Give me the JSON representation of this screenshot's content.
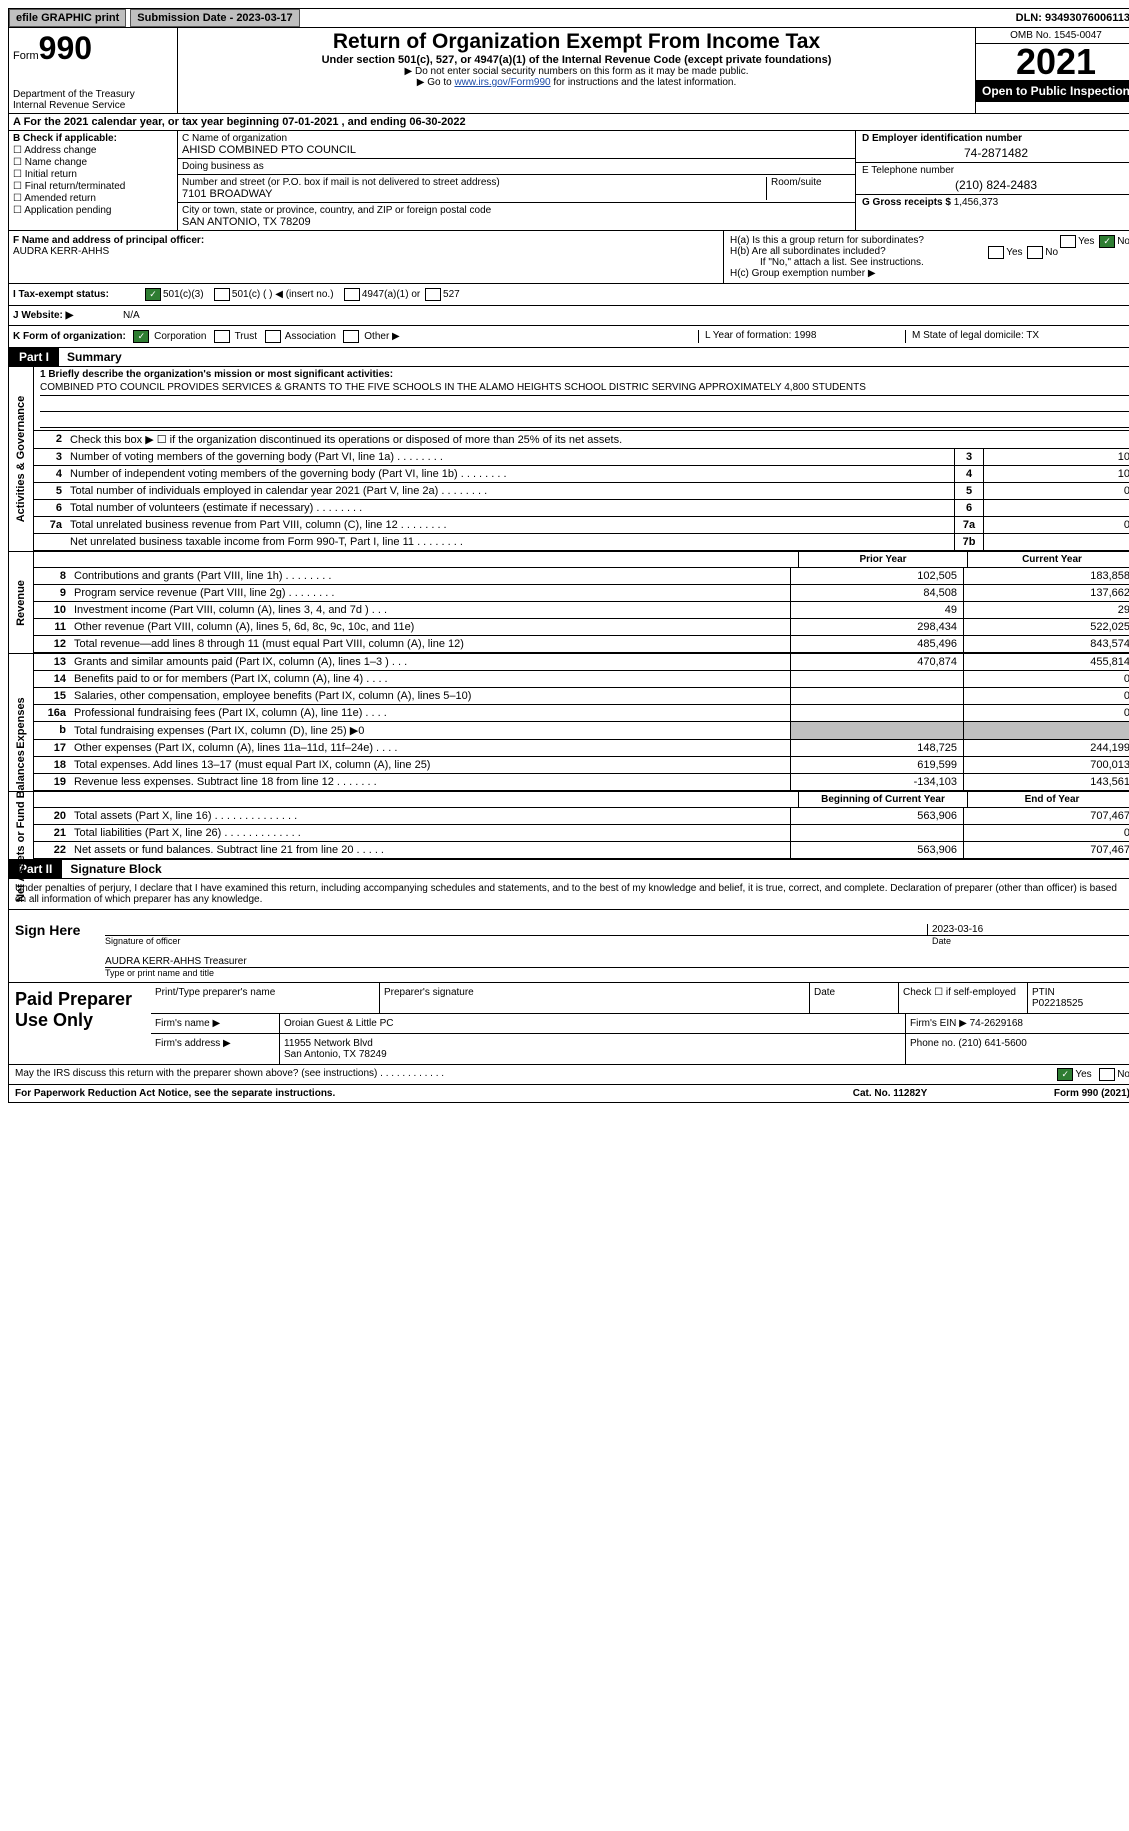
{
  "top": {
    "efile": "efile GRAPHIC print",
    "submission_label": "Submission Date - 2023-03-17",
    "dln": "DLN: 93493076006113"
  },
  "header": {
    "form_word": "Form",
    "form_no": "990",
    "dept": "Department of the Treasury",
    "irs": "Internal Revenue Service",
    "title": "Return of Organization Exempt From Income Tax",
    "sub": "Under section 501(c), 527, or 4947(a)(1) of the Internal Revenue Code (except private foundations)",
    "note1": "▶ Do not enter social security numbers on this form as it may be made public.",
    "note2_pre": "▶ Go to ",
    "note2_link": "www.irs.gov/Form990",
    "note2_post": " for instructions and the latest information.",
    "omb": "OMB No. 1545-0047",
    "year": "2021",
    "open": "Open to Public Inspection"
  },
  "A": "A  For the 2021 calendar year, or tax year beginning 07-01-2021    , and ending 06-30-2022",
  "B": {
    "head": "B Check if applicable:",
    "opts": [
      "Address change",
      "Name change",
      "Initial return",
      "Final return/terminated",
      "Amended return",
      "Application pending"
    ]
  },
  "C": {
    "name_label": "C Name of organization",
    "name": "AHISD COMBINED PTO COUNCIL",
    "dba_label": "Doing business as",
    "dba": "",
    "street_label": "Number and street (or P.O. box if mail is not delivered to street address)",
    "room_label": "Room/suite",
    "street": "7101 BROADWAY",
    "city_label": "City or town, state or province, country, and ZIP or foreign postal code",
    "city": "SAN ANTONIO, TX  78209"
  },
  "D": {
    "label": "D Employer identification number",
    "val": "74-2871482"
  },
  "E": {
    "label": "E Telephone number",
    "val": "(210) 824-2483"
  },
  "G": {
    "label": "G Gross receipts $",
    "val": "1,456,373"
  },
  "F": {
    "label": "F  Name and address of principal officer:",
    "val": "AUDRA KERR-AHHS"
  },
  "H": {
    "a": "H(a)  Is this a group return for subordinates?",
    "b": "H(b)  Are all subordinates included?",
    "note": "If \"No,\" attach a list. See instructions.",
    "c": "H(c)  Group exemption number ▶",
    "yes": "Yes",
    "no": "No"
  },
  "I": {
    "label": "I  Tax-exempt status:",
    "o1": "501(c)(3)",
    "o2": "501(c) (  ) ◀ (insert no.)",
    "o3": "4947(a)(1) or",
    "o4": "527"
  },
  "J": {
    "label": "J  Website: ▶",
    "val": "N/A"
  },
  "K": {
    "label": "K Form of organization:",
    "o1": "Corporation",
    "o2": "Trust",
    "o3": "Association",
    "o4": "Other ▶",
    "L": "L Year of formation: 1998",
    "M": "M State of legal domicile: TX"
  },
  "part1": {
    "tag": "Part I",
    "title": "Summary"
  },
  "s1": {
    "l1_label": "1  Briefly describe the organization's mission or most significant activities:",
    "mission": "COMBINED PTO COUNCIL PROVIDES SERVICES & GRANTS TO THE FIVE SCHOOLS IN THE ALAMO HEIGHTS SCHOOL DISTRIC SERVING APPROXIMATELY 4,800 STUDENTS",
    "l2": "Check this box ▶ ☐ if the organization discontinued its operations or disposed of more than 25% of its net assets.",
    "rows": [
      {
        "n": "3",
        "d": "Number of voting members of the governing body (Part VI, line 1a)",
        "box": "3",
        "v": "10"
      },
      {
        "n": "4",
        "d": "Number of independent voting members of the governing body (Part VI, line 1b)",
        "box": "4",
        "v": "10"
      },
      {
        "n": "5",
        "d": "Total number of individuals employed in calendar year 2021 (Part V, line 2a)",
        "box": "5",
        "v": "0"
      },
      {
        "n": "6",
        "d": "Total number of volunteers (estimate if necessary)",
        "box": "6",
        "v": ""
      },
      {
        "n": "7a",
        "d": "Total unrelated business revenue from Part VIII, column (C), line 12",
        "box": "7a",
        "v": "0"
      },
      {
        "n": "",
        "d": "Net unrelated business taxable income from Form 990-T, Part I, line 11",
        "box": "7b",
        "v": ""
      }
    ],
    "vlabel": "Activities & Governance"
  },
  "rev": {
    "vlabel": "Revenue",
    "hdr_prior": "Prior Year",
    "hdr_cur": "Current Year",
    "rows": [
      {
        "n": "8",
        "d": "Contributions and grants (Part VIII, line 1h)   .   .   .   .   .   .   .   .",
        "p": "102,505",
        "c": "183,858"
      },
      {
        "n": "9",
        "d": "Program service revenue (Part VIII, line 2g)   .   .   .   .   .   .   .   .",
        "p": "84,508",
        "c": "137,662"
      },
      {
        "n": "10",
        "d": "Investment income (Part VIII, column (A), lines 3, 4, and 7d )   .   .   .",
        "p": "49",
        "c": "29"
      },
      {
        "n": "11",
        "d": "Other revenue (Part VIII, column (A), lines 5, 6d, 8c, 9c, 10c, and 11e)",
        "p": "298,434",
        "c": "522,025"
      },
      {
        "n": "12",
        "d": "Total revenue—add lines 8 through 11 (must equal Part VIII, column (A), line 12)",
        "p": "485,496",
        "c": "843,574"
      }
    ]
  },
  "exp": {
    "vlabel": "Expenses",
    "rows": [
      {
        "n": "13",
        "d": "Grants and similar amounts paid (Part IX, column (A), lines 1–3 )   .   .   .",
        "p": "470,874",
        "c": "455,814"
      },
      {
        "n": "14",
        "d": "Benefits paid to or for members (Part IX, column (A), line 4)   .   .   .   .",
        "p": "",
        "c": "0"
      },
      {
        "n": "15",
        "d": "Salaries, other compensation, employee benefits (Part IX, column (A), lines 5–10)",
        "p": "",
        "c": "0"
      },
      {
        "n": "16a",
        "d": "Professional fundraising fees (Part IX, column (A), line 11e)   .   .   .   .",
        "p": "",
        "c": "0"
      },
      {
        "n": "b",
        "d": "Total fundraising expenses (Part IX, column (D), line 25) ▶0",
        "p": "grey",
        "c": "grey"
      },
      {
        "n": "17",
        "d": "Other expenses (Part IX, column (A), lines 11a–11d, 11f–24e)   .   .   .   .",
        "p": "148,725",
        "c": "244,199"
      },
      {
        "n": "18",
        "d": "Total expenses. Add lines 13–17 (must equal Part IX, column (A), line 25)",
        "p": "619,599",
        "c": "700,013"
      },
      {
        "n": "19",
        "d": "Revenue less expenses. Subtract line 18 from line 12   .   .   .   .   .   .   .",
        "p": "-134,103",
        "c": "143,561"
      }
    ]
  },
  "net": {
    "vlabel": "Net Assets or Fund Balances",
    "hdr_b": "Beginning of Current Year",
    "hdr_e": "End of Year",
    "rows": [
      {
        "n": "20",
        "d": "Total assets (Part X, line 16)   .   .   .   .   .   .   .   .   .   .   .   .   .   .",
        "p": "563,906",
        "c": "707,467"
      },
      {
        "n": "21",
        "d": "Total liabilities (Part X, line 26)   .   .   .   .   .   .   .   .   .   .   .   .   .",
        "p": "",
        "c": "0"
      },
      {
        "n": "22",
        "d": "Net assets or fund balances. Subtract line 21 from line 20   .   .   .   .   .",
        "p": "563,906",
        "c": "707,467"
      }
    ]
  },
  "part2": {
    "tag": "Part II",
    "title": "Signature Block"
  },
  "sig": {
    "decl": "Under penalties of perjury, I declare that I have examined this return, including accompanying schedules and statements, and to the best of my knowledge and belief, it is true, correct, and complete. Declaration of preparer (other than officer) is based on all information of which preparer has any knowledge.",
    "sign_here": "Sign Here",
    "sig_of_officer": "Signature of officer",
    "date": "2023-03-16",
    "date_lbl": "Date",
    "name": "AUDRA KERR-AHHS  Treasurer",
    "name_lbl": "Type or print name and title"
  },
  "paid": {
    "title": "Paid Preparer Use Only",
    "h_name": "Print/Type preparer's name",
    "h_sig": "Preparer's signature",
    "h_date": "Date",
    "h_chk": "Check ☐ if self-employed",
    "h_ptin": "PTIN",
    "ptin": "P02218525",
    "firm_name_lbl": "Firm's name      ▶",
    "firm_name": "Oroian Guest & Little PC",
    "firm_ein_lbl": "Firm's EIN ▶",
    "firm_ein": "74-2629168",
    "firm_addr_lbl": "Firm's address ▶",
    "firm_addr": "11955 Network Blvd",
    "firm_city": "San Antonio, TX  78249",
    "phone_lbl": "Phone no.",
    "phone": "(210) 641-5600"
  },
  "foot": {
    "discuss": "May the IRS discuss this return with the preparer shown above? (see instructions)   .   .   .   .   .   .   .   .   .   .   .   .",
    "yes": "Yes",
    "no": "No",
    "pra": "For Paperwork Reduction Act Notice, see the separate instructions.",
    "cat": "Cat. No. 11282Y",
    "form": "Form 990 (2021)"
  }
}
